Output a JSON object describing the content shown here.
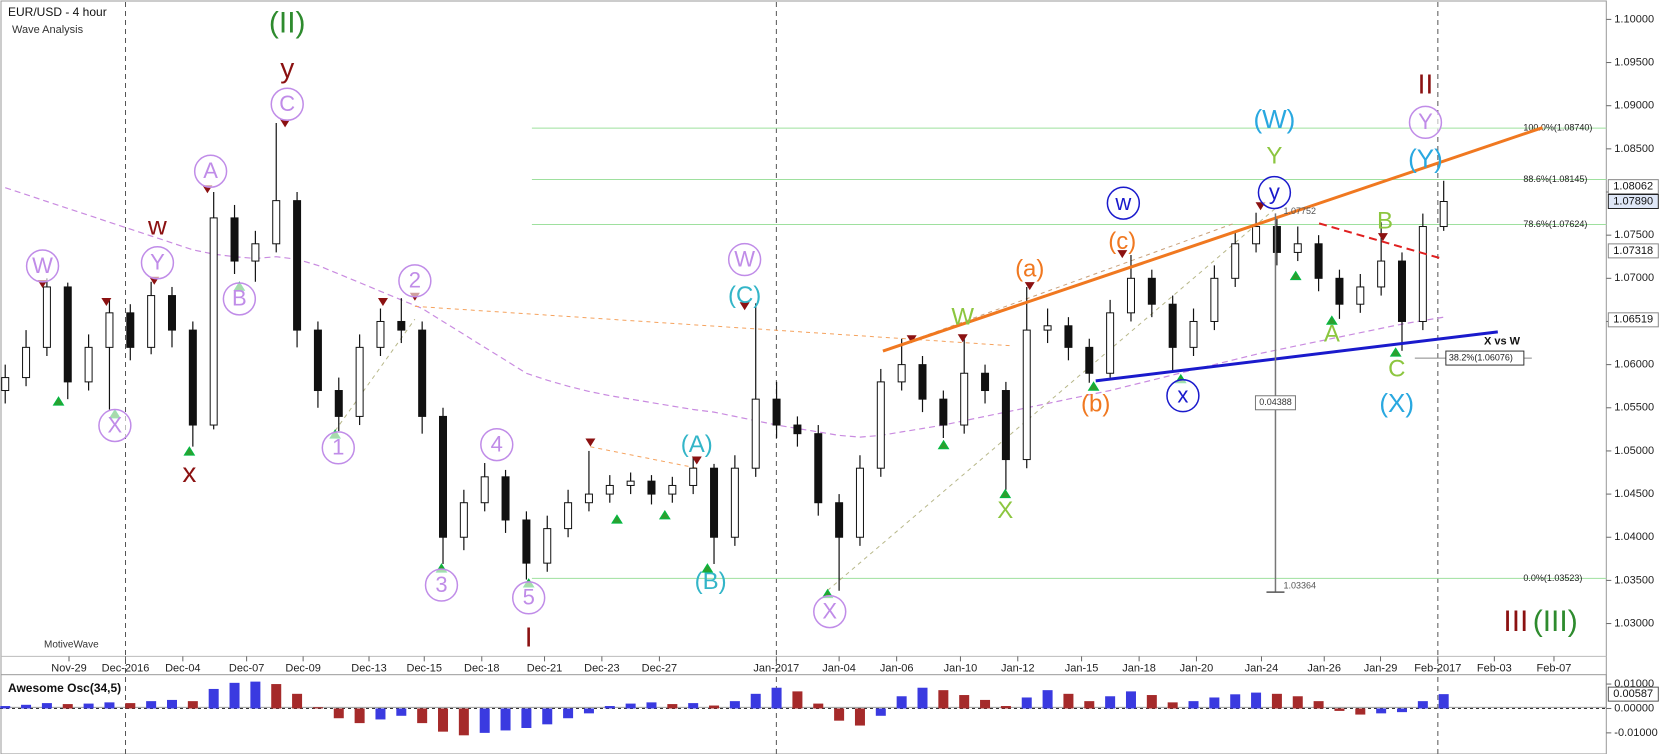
{
  "chart_data": {
    "type": "candlestick",
    "title": "EUR/USD - 4 hour",
    "subtitle": "Wave Analysis",
    "watermark": "MotiveWave",
    "xlim": [
      -0.25,
      76.8
    ],
    "xticks": [
      {
        "value": 3.06,
        "label": "Nov-29"
      },
      {
        "value": 5.77,
        "label": "Dec-2016"
      },
      {
        "value": 8.52,
        "label": "Dec-04"
      },
      {
        "value": 11.58,
        "label": "Dec-07"
      },
      {
        "value": 14.29,
        "label": "Dec-09"
      },
      {
        "value": 17.45,
        "label": "Dec-13"
      },
      {
        "value": 20.1,
        "label": "Dec-15"
      },
      {
        "value": 22.86,
        "label": "Dec-18"
      },
      {
        "value": 25.87,
        "label": "Dec-21"
      },
      {
        "value": 28.62,
        "label": "Dec-23"
      },
      {
        "value": 31.38,
        "label": "Dec-27"
      },
      {
        "value": 36.99,
        "label": "Jan-2017"
      },
      {
        "value": 40,
        "label": "Jan-04"
      },
      {
        "value": 42.76,
        "label": "Jan-06"
      },
      {
        "value": 45.82,
        "label": "Jan-10"
      },
      {
        "value": 48.57,
        "label": "Jan-12"
      },
      {
        "value": 51.63,
        "label": "Jan-15"
      },
      {
        "value": 54.39,
        "label": "Jan-18"
      },
      {
        "value": 57.14,
        "label": "Jan-20"
      },
      {
        "value": 60.26,
        "label": "Jan-24"
      },
      {
        "value": 63.27,
        "label": "Jan-26"
      },
      {
        "value": 65.97,
        "label": "Jan-29"
      },
      {
        "value": 68.72,
        "label": "Feb-2017"
      },
      {
        "value": 71.43,
        "label": "Feb-03"
      },
      {
        "value": 74.29,
        "label": "Feb-07"
      }
    ],
    "separators": [
      1,
      11,
      22
    ],
    "ylim": [
      1.0262,
      1.102
    ],
    "yticks": [
      {
        "value": 1.1,
        "label": "1.10000"
      },
      {
        "value": 1.095,
        "label": "1.09500"
      },
      {
        "value": 1.09,
        "label": "1.09000"
      },
      {
        "value": 1.085,
        "label": "1.08500"
      },
      {
        "value": 1.08,
        "label": "1.08000"
      },
      {
        "value": 1.075,
        "label": "1.07500"
      },
      {
        "value": 1.07,
        "label": "1.07000"
      },
      {
        "value": 1.065,
        "label": "1.06500"
      },
      {
        "value": 1.06,
        "label": "1.06000"
      },
      {
        "value": 1.055,
        "label": "1.05500"
      },
      {
        "value": 1.05,
        "label": "1.05000"
      },
      {
        "value": 1.045,
        "label": "1.04500"
      },
      {
        "value": 1.04,
        "label": "1.04000"
      },
      {
        "value": 1.035,
        "label": "1.03500"
      },
      {
        "value": 1.03,
        "label": "1.03000"
      }
    ],
    "up_color": "#ffffff",
    "down_color": "#111111",
    "open": [
      1.057,
      1.0585,
      1.062,
      1.069,
      1.058,
      1.062,
      1.066,
      1.062,
      1.068,
      1.064,
      1.053,
      1.077,
      1.072,
      1.074,
      1.079,
      1.064,
      1.057,
      1.054,
      1.062,
      1.065,
      1.064,
      1.054,
      1.04,
      1.044,
      1.047,
      1.042,
      1.037,
      1.041,
      1.044,
      1.045,
      1.046,
      1.0465,
      1.045,
      1.046,
      1.048,
      1.04,
      1.048,
      1.056,
      1.053,
      1.052,
      1.044,
      1.04,
      1.048,
      1.058,
      1.06,
      1.056,
      1.053,
      1.059,
      1.057,
      1.049,
      1.064,
      1.0645,
      1.062,
      1.059,
      1.066,
      1.07,
      1.067,
      1.062,
      1.065,
      1.07,
      1.074,
      1.076,
      1.073,
      1.074,
      1.07,
      1.067,
      1.069,
      1.072,
      1.065,
      1.076
    ],
    "high": [
      1.06,
      1.064,
      1.07,
      1.0695,
      1.0635,
      1.0675,
      1.067,
      1.0696,
      1.069,
      1.065,
      1.08,
      1.0785,
      1.0755,
      1.088,
      1.08,
      1.065,
      1.0585,
      1.0635,
      1.0665,
      1.0677,
      1.065,
      1.055,
      1.0455,
      1.0486,
      1.0478,
      1.043,
      1.0425,
      1.0455,
      1.05,
      1.0472,
      1.0475,
      1.0472,
      1.047,
      1.0492,
      1.0485,
      1.0495,
      1.0671,
      1.058,
      1.054,
      1.053,
      1.045,
      1.0495,
      1.0595,
      1.063,
      1.061,
      1.057,
      1.063,
      1.06,
      1.058,
      1.069,
      1.0665,
      1.0655,
      1.063,
      1.0675,
      1.0727,
      1.071,
      1.068,
      1.0665,
      1.0715,
      1.0755,
      1.0776,
      1.077,
      1.076,
      1.075,
      1.071,
      1.0705,
      1.0765,
      1.073,
      1.0775,
      1.0813
    ],
    "low": [
      1.0555,
      1.0575,
      1.061,
      1.056,
      1.057,
      1.0548,
      1.0605,
      1.0612,
      1.062,
      1.0505,
      1.0525,
      1.0705,
      1.0696,
      1.073,
      1.062,
      1.055,
      1.0523,
      1.053,
      1.061,
      1.0625,
      1.052,
      1.0369,
      1.0385,
      1.043,
      1.0405,
      1.0351,
      1.036,
      1.04,
      1.043,
      1.044,
      1.045,
      1.0438,
      1.044,
      1.045,
      1.0369,
      1.039,
      1.047,
      1.0515,
      1.0505,
      1.0425,
      1.0338,
      1.039,
      1.047,
      1.057,
      1.0545,
      1.0515,
      1.052,
      1.0555,
      1.0455,
      1.048,
      1.0625,
      1.0605,
      1.0579,
      1.0585,
      1.065,
      1.0655,
      1.0591,
      1.061,
      1.064,
      1.069,
      1.073,
      1.0715,
      1.072,
      1.0685,
      1.0653,
      1.066,
      1.068,
      1.0616,
      1.064,
      1.0755
    ],
    "close": [
      1.0585,
      1.062,
      1.069,
      1.058,
      1.062,
      1.066,
      1.062,
      1.068,
      1.064,
      1.053,
      1.077,
      1.072,
      1.074,
      1.079,
      1.064,
      1.057,
      1.054,
      1.062,
      1.065,
      1.064,
      1.054,
      1.04,
      1.044,
      1.047,
      1.042,
      1.037,
      1.041,
      1.044,
      1.045,
      1.046,
      1.0465,
      1.045,
      1.046,
      1.048,
      1.04,
      1.048,
      1.056,
      1.053,
      1.052,
      1.044,
      1.04,
      1.048,
      1.058,
      1.06,
      1.056,
      1.053,
      1.059,
      1.057,
      1.049,
      1.064,
      1.0645,
      1.062,
      1.059,
      1.066,
      1.07,
      1.067,
      1.062,
      1.065,
      1.07,
      1.074,
      1.076,
      1.073,
      1.074,
      1.07,
      1.067,
      1.069,
      1.072,
      1.065,
      1.076,
      1.0789
    ],
    "ma_color": "#c98be0",
    "ma_values": [
      1.0805,
      1.0797,
      1.0789,
      1.0781,
      1.0773,
      1.0765,
      1.0757,
      1.0749,
      1.0741,
      1.0733,
      1.0728,
      1.0725,
      1.0723,
      1.0725,
      1.0722,
      1.0715,
      1.0705,
      1.0695,
      1.0685,
      1.0675,
      1.0665,
      1.065,
      1.0635,
      1.062,
      1.0605,
      1.059,
      1.0582,
      1.0575,
      1.0569,
      1.0564,
      1.056,
      1.0556,
      1.0552,
      1.0548,
      1.0545,
      1.054,
      1.0535,
      1.053,
      1.0526,
      1.0522,
      1.0518,
      1.0516,
      1.0518,
      1.0522,
      1.0526,
      1.053,
      1.0535,
      1.054,
      1.0545,
      1.055,
      1.0555,
      1.056,
      1.0565,
      1.057,
      1.0576,
      1.0582,
      1.0588,
      1.0594,
      1.06,
      1.0606,
      1.0612,
      1.0617,
      1.0622,
      1.0627,
      1.0632,
      1.0637,
      1.0642,
      1.0647,
      1.0651,
      1.0655
    ],
    "price_flags": [
      {
        "value": 1.08062,
        "label": "1.08062",
        "style": "plain"
      },
      {
        "value": 1.0789,
        "label": "1.07890",
        "style": "current"
      },
      {
        "value": 1.07318,
        "label": "1.07318",
        "style": "plain"
      },
      {
        "value": 1.06519,
        "label": "1.06519",
        "style": "plain"
      }
    ],
    "fib_color": "#9ee09e",
    "fib_levels": [
      {
        "value": 1.0874,
        "label": "100.0%(1.08740)"
      },
      {
        "value": 1.08145,
        "label": "88.6%(1.08145)"
      },
      {
        "value": 1.07624,
        "label": "78.6%(1.07624)"
      },
      {
        "value": 1.06076,
        "label": "38.2%(1.06076)"
      },
      {
        "value": 1.03523,
        "label": "0.0%(1.03523)"
      }
    ],
    "measure": {
      "top": {
        "value": 1.07752,
        "label": "1.07752"
      },
      "bottom": {
        "value": 1.03364,
        "label": "1.03364"
      },
      "range": {
        "value": 0.04388,
        "label": "0.04388"
      }
    },
    "annotations": [
      {
        "text": "X vs W"
      }
    ],
    "wave_labels": [
      {
        "text": "(II)",
        "color": "#2e8b2e",
        "circled": false
      },
      {
        "text": "y",
        "color": "#8b1111",
        "circled": false
      },
      {
        "text": "C",
        "color": "#c08ce8",
        "circled": true
      },
      {
        "text": "W",
        "color": "#c08ce8",
        "circled": true
      },
      {
        "text": "X",
        "color": "#c08ce8",
        "circled": true
      },
      {
        "text": "w",
        "color": "#8b1111",
        "circled": false
      },
      {
        "text": "Y",
        "color": "#c08ce8",
        "circled": true
      },
      {
        "text": "x",
        "color": "#8b1111",
        "circled": false
      },
      {
        "text": "A",
        "color": "#c08ce8",
        "circled": true
      },
      {
        "text": "B",
        "color": "#c08ce8",
        "circled": true
      },
      {
        "text": "1",
        "color": "#c08ce8",
        "circled": true
      },
      {
        "text": "2",
        "color": "#c08ce8",
        "circled": true
      },
      {
        "text": "3",
        "color": "#c08ce8",
        "circled": true
      },
      {
        "text": "4",
        "color": "#c08ce8",
        "circled": true
      },
      {
        "text": "5",
        "color": "#c08ce8",
        "circled": true
      },
      {
        "text": "I",
        "color": "#8b1111",
        "circled": false
      },
      {
        "text": "(A)",
        "color": "#33b5c8",
        "circled": false
      },
      {
        "text": "(B)",
        "color": "#33b5c8",
        "circled": false
      },
      {
        "text": "W",
        "color": "#c08ce8",
        "circled": true
      },
      {
        "text": "(C)",
        "color": "#33b5c8",
        "circled": false
      },
      {
        "text": "X",
        "color": "#c08ce8",
        "circled": true
      },
      {
        "text": "W",
        "color": "#8cc63f",
        "circled": false
      },
      {
        "text": "X",
        "color": "#8cc63f",
        "circled": false
      },
      {
        "text": "(a)",
        "color": "#f07820",
        "circled": false
      },
      {
        "text": "(b)",
        "color": "#f07820",
        "circled": false
      },
      {
        "text": "(c)",
        "color": "#f07820",
        "circled": false
      },
      {
        "text": "w",
        "color": "#1a1acc",
        "circled": true
      },
      {
        "text": "x",
        "color": "#1a1acc",
        "circled": true
      },
      {
        "text": "(W)",
        "color": "#29a8e0",
        "circled": false
      },
      {
        "text": "Y",
        "color": "#8cc63f",
        "circled": false
      },
      {
        "text": "y",
        "color": "#1a1acc",
        "circled": true
      },
      {
        "text": "B",
        "color": "#8cc63f",
        "circled": false
      },
      {
        "text": "A",
        "color": "#8cc63f",
        "circled": false
      },
      {
        "text": "C",
        "color": "#8cc63f",
        "circled": false
      },
      {
        "text": "(X)",
        "color": "#29a8e0",
        "circled": false
      },
      {
        "text": "II",
        "color": "#8b1111",
        "circled": false
      },
      {
        "text": "Y",
        "color": "#c08ce8",
        "circled": true
      },
      {
        "text": "(Y)",
        "color": "#29a8e0",
        "circled": false
      },
      {
        "text": "III",
        "color": "#8b1111",
        "circled": false
      },
      {
        "text": "(III)",
        "color": "#2e8b2e",
        "circled": false
      }
    ],
    "oscillator": {
      "title": "Awesome Osc(34,5)",
      "up_color": "#3a3ae0",
      "down_color": "#a52a2a",
      "ylim": [
        -0.017,
        0.0122
      ],
      "yticks": [
        {
          "value": 0.01,
          "label": "0.01000"
        },
        {
          "value": 0,
          "label": "0.00000"
        },
        {
          "value": -0.01,
          "label": "-0.01000"
        }
      ],
      "flag": {
        "value": 0.00587,
        "label": "0.00587"
      },
      "values": [
        0.001,
        0.0015,
        0.0022,
        0.0018,
        0.002,
        0.0025,
        0.0022,
        0.003,
        0.0035,
        0.003,
        0.008,
        0.0105,
        0.011,
        0.01,
        0.006,
        0.0005,
        -0.004,
        -0.006,
        -0.0045,
        -0.003,
        -0.006,
        -0.0095,
        -0.011,
        -0.01,
        -0.009,
        -0.008,
        -0.0065,
        -0.004,
        -0.002,
        0.001,
        0.002,
        0.0025,
        0.0018,
        0.0022,
        0.0012,
        0.003,
        0.006,
        0.0085,
        0.007,
        0.002,
        -0.005,
        -0.007,
        -0.003,
        0.005,
        0.0085,
        0.0075,
        0.0055,
        0.0035,
        0.001,
        0.0045,
        0.0075,
        0.006,
        0.003,
        0.005,
        0.007,
        0.0055,
        0.0025,
        0.003,
        0.0045,
        0.0058,
        0.0065,
        0.006,
        0.005,
        0.003,
        -0.001,
        -0.0025,
        -0.002,
        -0.0015,
        0.003,
        0.00587
      ]
    }
  }
}
